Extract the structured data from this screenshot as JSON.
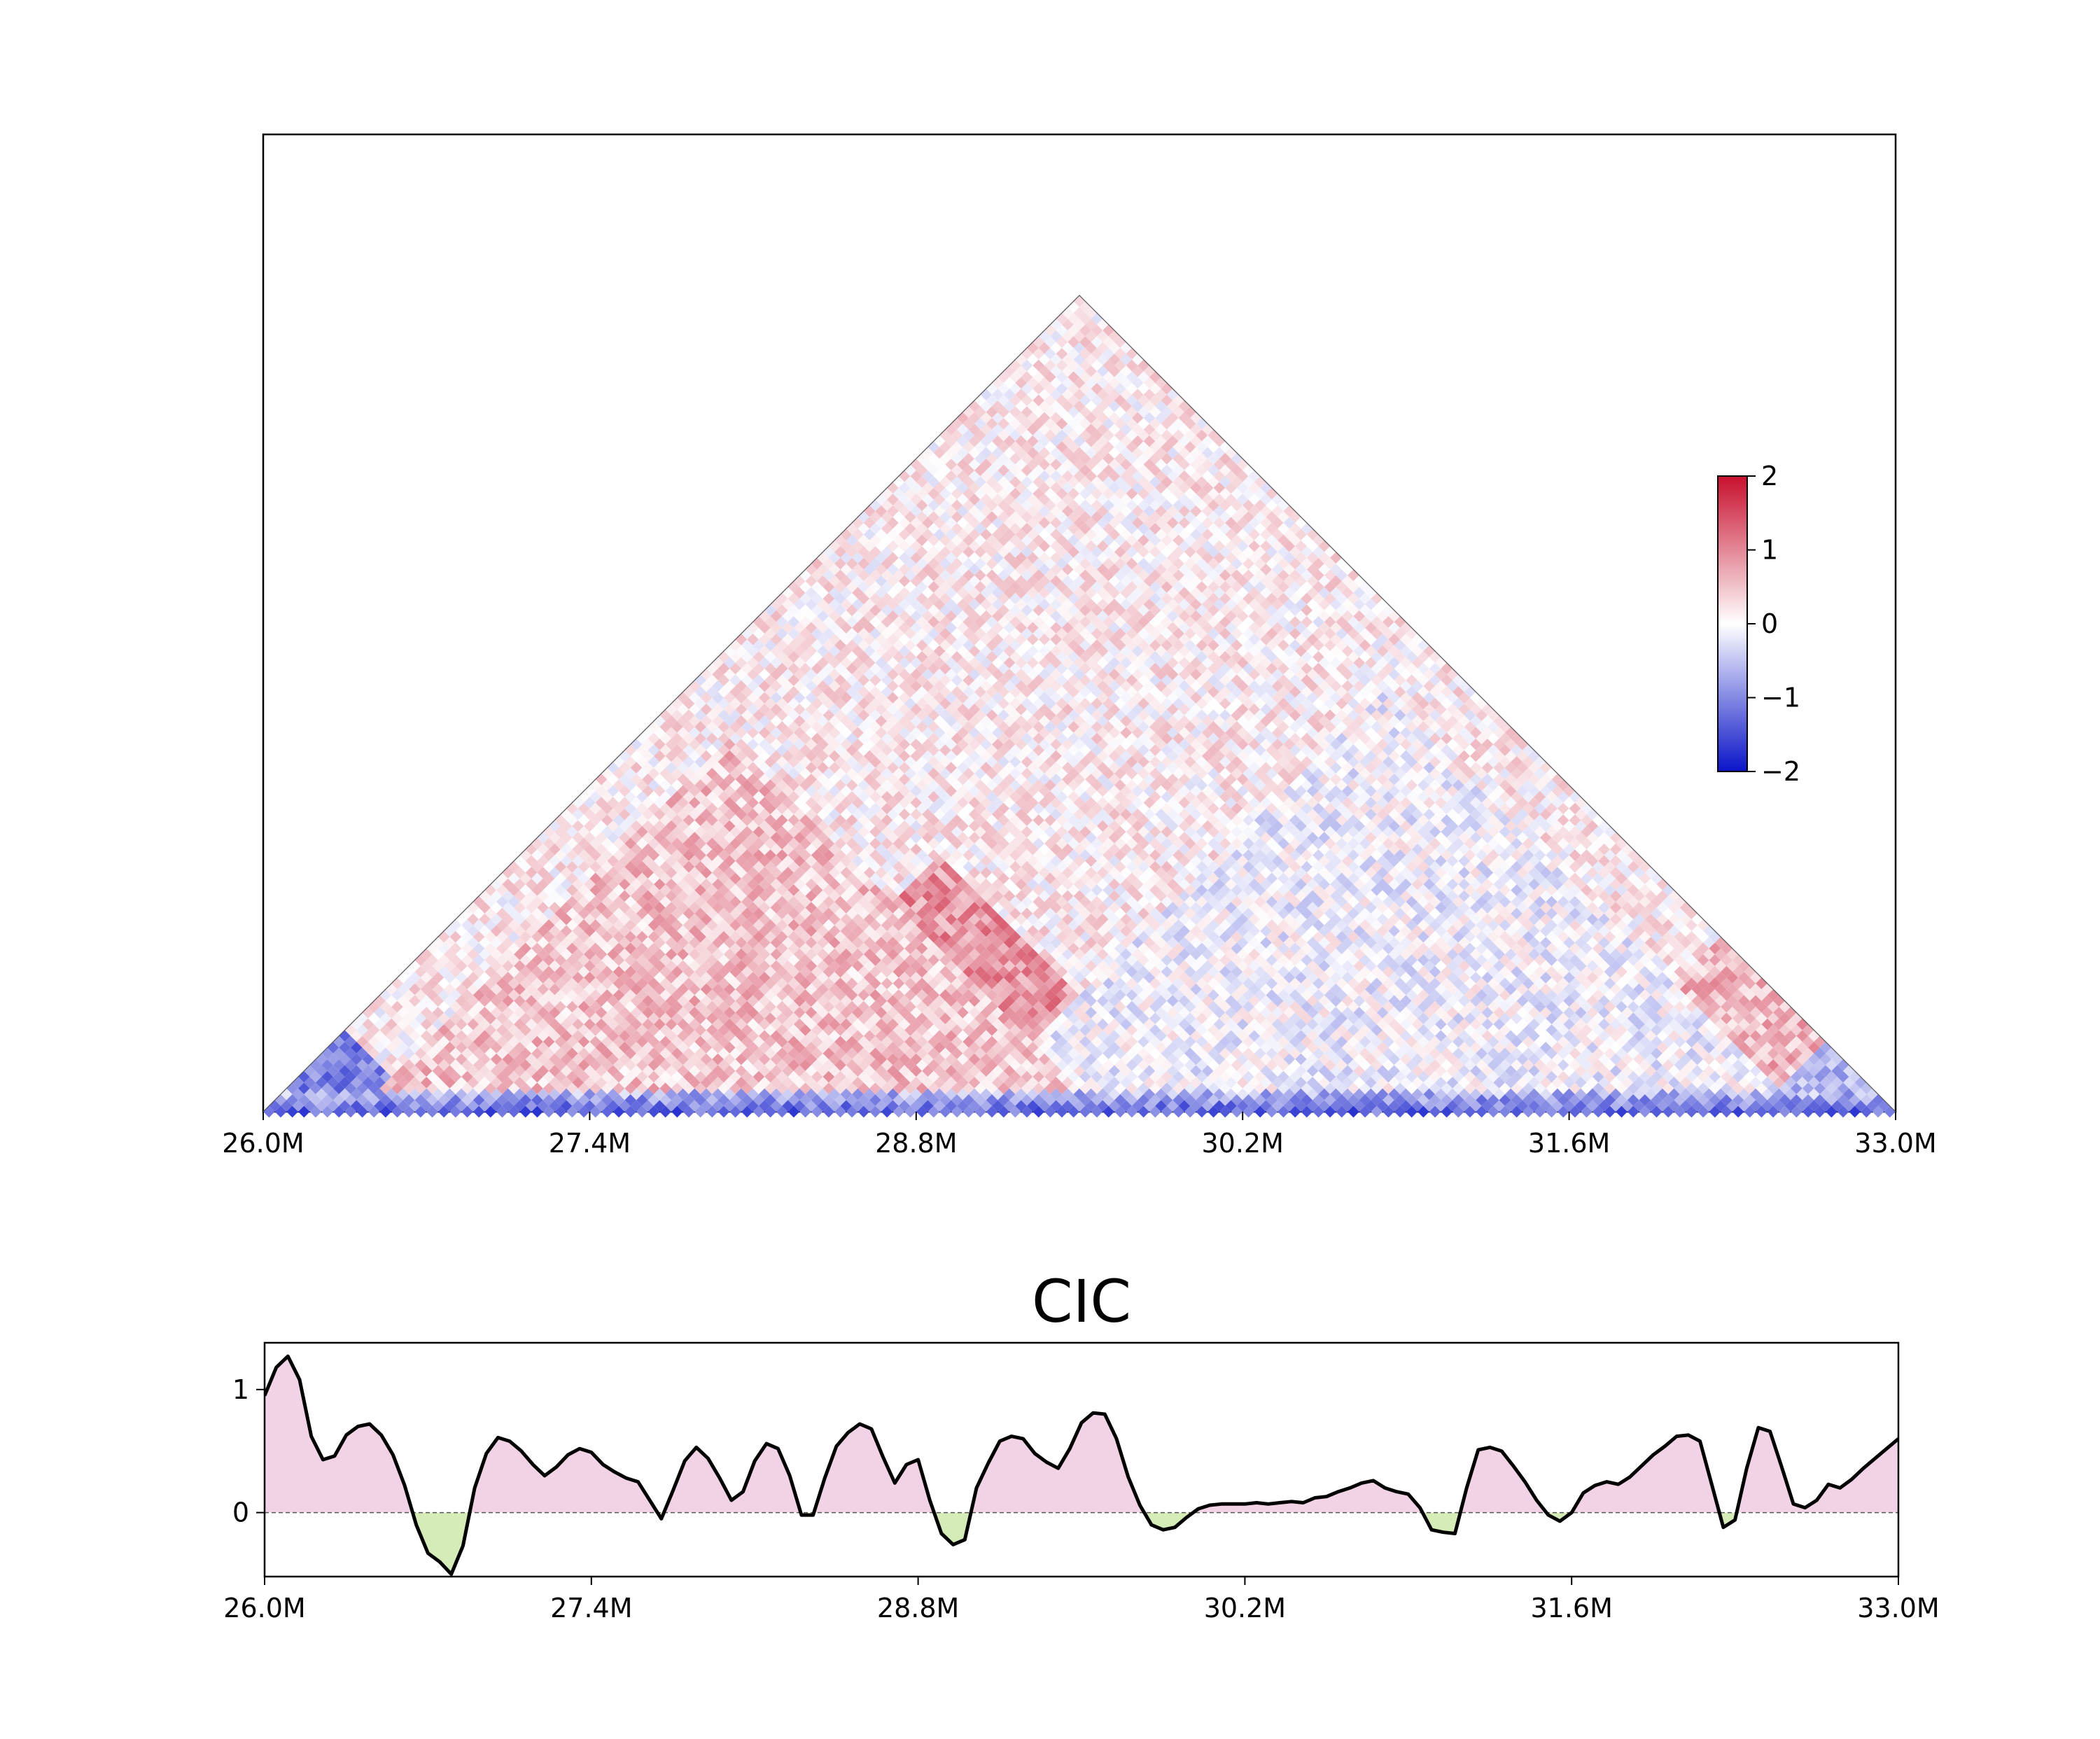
{
  "chart_data": [
    {
      "type": "heatmap",
      "shape": "triangle",
      "title": "",
      "xlabel": "",
      "ylabel": "",
      "xlim": [
        26.0,
        33.0
      ],
      "x_ticks": [
        "26.0M",
        "27.4M",
        "28.8M",
        "30.2M",
        "31.6M",
        "33.0M"
      ],
      "x_tick_values": [
        26.0,
        27.4,
        28.8,
        30.2,
        31.6,
        33.0
      ],
      "colorbar": {
        "min": -2,
        "max": 2,
        "ticks": [
          "2",
          "1",
          "0",
          "−1",
          "−2"
        ],
        "colormap": [
          "#0a14c8",
          "#ffffff",
          "#c8102e"
        ]
      },
      "domains": [
        {
          "start": 26.0,
          "end": 26.7,
          "value": -1.1
        },
        {
          "start": 26.7,
          "end": 27.6,
          "value": 0.3
        },
        {
          "start": 26.9,
          "end": 27.6,
          "value": -0.9
        },
        {
          "start": 27.6,
          "end": 28.7,
          "value": -0.8
        },
        {
          "start": 27.0,
          "end": 28.9,
          "value": -0.5
        },
        {
          "start": 27.8,
          "end": 30.0,
          "value": 0.9
        },
        {
          "start": 29.0,
          "end": 29.7,
          "value": -1.0
        },
        {
          "start": 29.7,
          "end": 30.9,
          "value": -0.4
        },
        {
          "start": 29.5,
          "end": 31.0,
          "value": -0.3
        },
        {
          "start": 30.0,
          "end": 32.4,
          "value": -0.2
        },
        {
          "start": 31.2,
          "end": 32.1,
          "value": 0.4
        },
        {
          "start": 31.5,
          "end": 33.0,
          "value": 0.6
        },
        {
          "start": 31.6,
          "end": 32.4,
          "value": -0.8
        },
        {
          "start": 32.4,
          "end": 33.0,
          "value": -0.7
        },
        {
          "start": 29.0,
          "end": 32.6,
          "value": -0.1
        },
        {
          "start": 26.4,
          "end": 29.6,
          "value": 0.5
        }
      ],
      "near_diagonal_value": -1.3,
      "far_value": 0.15,
      "noise": 0.45
    },
    {
      "type": "area",
      "title": "CIC",
      "xlabel": "",
      "ylabel": "",
      "xlim": [
        26.0,
        33.0
      ],
      "ylim": [
        -0.52,
        1.38
      ],
      "x_ticks": [
        "26.0M",
        "27.4M",
        "28.8M",
        "30.2M",
        "31.6M",
        "33.0M"
      ],
      "x_tick_values": [
        26.0,
        27.4,
        28.8,
        30.2,
        31.6,
        33.0
      ],
      "y_ticks": [
        "0",
        "1"
      ],
      "y_tick_values": [
        0,
        1
      ],
      "zero_line": true,
      "positive_fill": "#f2d3e6",
      "negative_fill": "#d5ecb9",
      "line_color": "#000000",
      "x": [
        26.0,
        26.05,
        26.1,
        26.15,
        26.2,
        26.25,
        26.3,
        26.35,
        26.4,
        26.45,
        26.5,
        26.55,
        26.6,
        26.65,
        26.7,
        26.75,
        26.8,
        26.85,
        26.9,
        26.95,
        27.0,
        27.05,
        27.1,
        27.15,
        27.2,
        27.25,
        27.3,
        27.35,
        27.4,
        27.45,
        27.5,
        27.55,
        27.6,
        27.65,
        27.7,
        27.75,
        27.8,
        27.85,
        27.9,
        27.95,
        28.0,
        28.05,
        28.1,
        28.15,
        28.2,
        28.25,
        28.3,
        28.35,
        28.4,
        28.45,
        28.5,
        28.55,
        28.6,
        28.65,
        28.7,
        28.75,
        28.8,
        28.85,
        28.9,
        28.95,
        29.0,
        29.05,
        29.1,
        29.15,
        29.2,
        29.25,
        29.3,
        29.35,
        29.4,
        29.45,
        29.5,
        29.55,
        29.6,
        29.65,
        29.7,
        29.75,
        29.8,
        29.85,
        29.9,
        29.95,
        30.0,
        30.05,
        30.1,
        30.15,
        30.2,
        30.25,
        30.3,
        30.35,
        30.4,
        30.45,
        30.5,
        30.55,
        30.6,
        30.65,
        30.7,
        30.75,
        30.8,
        30.85,
        30.9,
        30.95,
        31.0,
        31.05,
        31.1,
        31.15,
        31.2,
        31.25,
        31.3,
        31.35,
        31.4,
        31.45,
        31.5,
        31.55,
        31.6,
        31.65,
        31.7,
        31.75,
        31.8,
        31.85,
        31.9,
        31.95,
        32.0,
        32.05,
        32.1,
        32.15,
        32.2,
        32.25,
        32.3,
        32.35,
        32.4,
        32.45,
        32.5,
        32.55,
        32.6,
        32.65,
        32.7,
        32.75,
        32.8,
        32.85,
        32.9,
        32.95,
        33.0
      ],
      "y": [
        0.95,
        1.18,
        1.27,
        1.08,
        0.62,
        0.43,
        0.46,
        0.63,
        0.7,
        0.72,
        0.63,
        0.47,
        0.22,
        -0.1,
        -0.33,
        -0.4,
        -0.5,
        -0.27,
        0.2,
        0.48,
        0.61,
        0.58,
        0.5,
        0.39,
        0.3,
        0.37,
        0.47,
        0.52,
        0.49,
        0.39,
        0.33,
        0.28,
        0.25,
        0.1,
        -0.05,
        0.18,
        0.42,
        0.53,
        0.44,
        0.28,
        0.1,
        0.17,
        0.42,
        0.56,
        0.52,
        0.3,
        -0.02,
        -0.02,
        0.28,
        0.54,
        0.65,
        0.72,
        0.68,
        0.45,
        0.24,
        0.39,
        0.43,
        0.1,
        -0.17,
        -0.26,
        -0.22,
        0.2,
        0.4,
        0.58,
        0.62,
        0.6,
        0.48,
        0.41,
        0.36,
        0.52,
        0.73,
        0.81,
        0.8,
        0.6,
        0.29,
        0.06,
        -0.1,
        -0.14,
        -0.12,
        -0.04,
        0.03,
        0.06,
        0.07,
        0.07,
        0.07,
        0.08,
        0.07,
        0.08,
        0.09,
        0.08,
        0.12,
        0.13,
        0.17,
        0.2,
        0.24,
        0.26,
        0.2,
        0.17,
        0.15,
        0.04,
        -0.14,
        -0.16,
        -0.17,
        0.2,
        0.51,
        0.53,
        0.5,
        0.38,
        0.25,
        0.1,
        -0.02,
        -0.07,
        0.0,
        0.16,
        0.22,
        0.25,
        0.23,
        0.29,
        0.38,
        0.47,
        0.54,
        0.62,
        0.63,
        0.58,
        0.23,
        -0.12,
        -0.06,
        0.36,
        0.69,
        0.66,
        0.37,
        0.07,
        0.04,
        0.1,
        0.23,
        0.2,
        0.27,
        0.36,
        0.44,
        0.52,
        0.6
      ]
    }
  ]
}
